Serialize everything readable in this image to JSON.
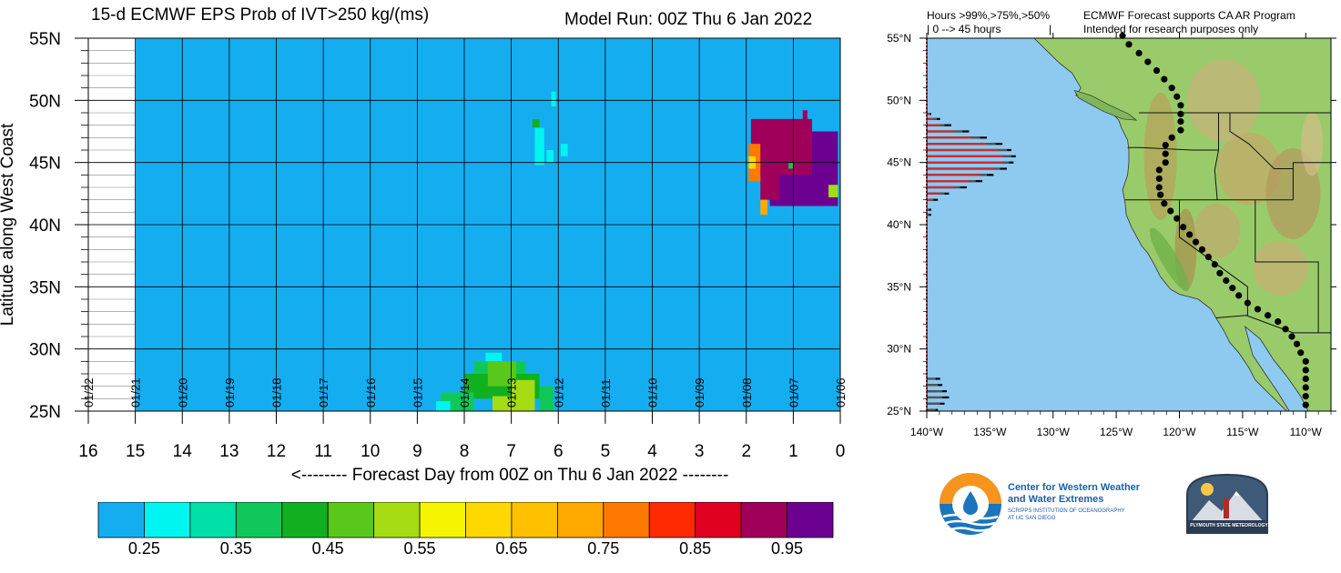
{
  "header": {
    "title": "15-d ECMWF EPS Prob of IVT>250 kg/(ms)",
    "model_run": "Model Run: 00Z Thu 6 Jan 2022"
  },
  "chart_data": [
    {
      "type": "heatmap",
      "title": "15-d ECMWF EPS Prob of IVT>250 kg/(ms)",
      "xlabel": "<-------- Forecast Day from 00Z on Thu 6 Jan 2022 --------",
      "ylabel": "Latitude along West Coast",
      "x_reversed": true,
      "xlim": [
        0,
        16
      ],
      "ylim": [
        25,
        55
      ],
      "x_ticks": [
        0,
        1,
        2,
        3,
        4,
        5,
        6,
        7,
        8,
        9,
        10,
        11,
        12,
        13,
        14,
        15,
        16
      ],
      "x_tick_labels": [
        "0",
        "1",
        "2",
        "3",
        "4",
        "5",
        "6",
        "7",
        "8",
        "9",
        "10",
        "11",
        "12",
        "13",
        "14",
        "15",
        "16"
      ],
      "y_ticks": [
        25,
        30,
        35,
        40,
        45,
        50,
        55
      ],
      "y_tick_labels": [
        "25N",
        "30N",
        "35N",
        "40N",
        "45N",
        "50N",
        "55N"
      ],
      "date_labels": [
        "01/06",
        "01/07",
        "01/08",
        "01/09",
        "01/10",
        "01/11",
        "01/12",
        "01/13",
        "01/14",
        "01/15",
        "01/16",
        "01/17",
        "01/18",
        "01/19",
        "01/20",
        "01/21",
        "01/22"
      ],
      "data_extent_days": 15,
      "background_prob": 0.25,
      "regions": [
        {
          "day": [
            0.05,
            1.5
          ],
          "lat": [
            41.5,
            47.5
          ],
          "prob": 1.0
        },
        {
          "day": [
            0.6,
            1.9
          ],
          "lat": [
            44.0,
            48.5
          ],
          "prob": 0.97
        },
        {
          "day": [
            1.3,
            1.7
          ],
          "lat": [
            42.0,
            44.5
          ],
          "prob": 0.97
        },
        {
          "day": [
            1.55,
            1.7
          ],
          "lat": [
            40.8,
            42.0
          ],
          "prob": 0.75
        },
        {
          "day": [
            0.05,
            0.25
          ],
          "lat": [
            42.2,
            43.2
          ],
          "prob": 0.6
        },
        {
          "day": [
            1.7,
            1.95
          ],
          "lat": [
            43.5,
            46.5
          ],
          "prob": 0.85
        },
        {
          "day": [
            1.8,
            1.95
          ],
          "lat": [
            44.5,
            45.5
          ],
          "prob": 0.65
        },
        {
          "day": [
            0.7,
            0.8
          ],
          "lat": [
            47.8,
            49.2
          ],
          "prob": 0.97
        },
        {
          "day": [
            1.0,
            1.1
          ],
          "lat": [
            44.5,
            45.0
          ],
          "prob": 0.4
        },
        {
          "day": [
            6.3,
            6.5
          ],
          "lat": [
            44.8,
            47.8
          ],
          "prob": 0.35
        },
        {
          "day": [
            6.4,
            6.55
          ],
          "lat": [
            47.8,
            48.5
          ],
          "prob": 0.45
        },
        {
          "day": [
            6.05,
            6.15
          ],
          "lat": [
            49.5,
            50.7
          ],
          "prob": 0.35
        },
        {
          "day": [
            5.8,
            5.95
          ],
          "lat": [
            45.5,
            46.5
          ],
          "prob": 0.35
        },
        {
          "day": [
            6.1,
            6.25
          ],
          "lat": [
            45.0,
            46.0
          ],
          "prob": 0.35
        },
        {
          "day": [
            7.2,
            7.55
          ],
          "lat": [
            29.0,
            29.7
          ],
          "prob": 0.35
        },
        {
          "day": [
            6.7,
            7.8
          ],
          "lat": [
            28.0,
            29.0
          ],
          "prob": 0.4
        },
        {
          "day": [
            6.4,
            8.0
          ],
          "lat": [
            26.0,
            28.0
          ],
          "prob": 0.45
        },
        {
          "day": [
            6.9,
            7.5
          ],
          "lat": [
            27.0,
            29.0
          ],
          "prob": 0.5
        },
        {
          "day": [
            6.5,
            7.0
          ],
          "lat": [
            25.0,
            27.5
          ],
          "prob": 0.55
        },
        {
          "day": [
            7.0,
            7.4
          ],
          "lat": [
            25.0,
            26.2
          ],
          "prob": 0.6
        },
        {
          "day": [
            7.8,
            8.5
          ],
          "lat": [
            25.0,
            26.5
          ],
          "prob": 0.42
        },
        {
          "day": [
            8.3,
            8.6
          ],
          "lat": [
            25.0,
            25.8
          ],
          "prob": 0.35
        },
        {
          "day": [
            6.1,
            6.4
          ],
          "lat": [
            25.0,
            27.0
          ],
          "prob": 0.4
        }
      ],
      "colorbar": {
        "colors": [
          "#14aef0",
          "#00f5f0",
          "#00e0a8",
          "#10c85a",
          "#10b020",
          "#5ac81a",
          "#a6dc14",
          "#f5f500",
          "#ffd800",
          "#ffc000",
          "#ffa800",
          "#ff7800",
          "#ff2a00",
          "#e00020",
          "#a0005a",
          "#6c0090"
        ],
        "tick_labels": [
          "0.25",
          "0.35",
          "0.45",
          "0.55",
          "0.65",
          "0.75",
          "0.85",
          "0.95"
        ]
      }
    },
    {
      "type": "bar",
      "title": "",
      "legend_text": [
        "Hours >99%,>75%,>50%",
        "| 0 --> 45 hours",
        "|"
      ],
      "notes": [
        "ECMWF Forecast supports CA AR Program",
        "Intended for research purposes only"
      ],
      "x_ticks": [
        -140,
        -135,
        -130,
        -125,
        -120,
        -115,
        -110
      ],
      "x_tick_labels": [
        "140°W",
        "135°W",
        "130°W",
        "125°W",
        "120°W",
        "115°W",
        "110°W"
      ],
      "y_ticks": [
        25,
        30,
        35,
        40,
        45,
        50,
        55
      ],
      "y_tick_labels": [
        "25°N",
        "30°N",
        "35°N",
        "40°N",
        "45°N",
        "50°N",
        "55°N"
      ],
      "lon_range": [
        -140,
        -108
      ],
      "lat_range": [
        25,
        55
      ],
      "bar_max_hours": 45,
      "series_colors": [
        "#000000",
        "#555555",
        "#d52a2a"
      ],
      "bars": [
        {
          "lat": 48.9,
          "h99": 1.0,
          "h75": 1.5,
          "h50": 2
        },
        {
          "lat": 48.5,
          "h99": 3,
          "h75": 4.5,
          "h50": 6
        },
        {
          "lat": 48.0,
          "h99": 6,
          "h75": 8,
          "h50": 11
        },
        {
          "lat": 47.5,
          "h99": 12,
          "h75": 16,
          "h50": 19
        },
        {
          "lat": 47.0,
          "h99": 20,
          "h75": 24,
          "h50": 27
        },
        {
          "lat": 46.5,
          "h99": 27,
          "h75": 31,
          "h50": 34
        },
        {
          "lat": 46.0,
          "h99": 32,
          "h75": 36,
          "h50": 38
        },
        {
          "lat": 45.5,
          "h99": 34,
          "h75": 38,
          "h50": 40
        },
        {
          "lat": 45.0,
          "h99": 34,
          "h75": 37,
          "h50": 39
        },
        {
          "lat": 44.5,
          "h99": 30,
          "h75": 33,
          "h50": 36
        },
        {
          "lat": 44.0,
          "h99": 24,
          "h75": 27,
          "h50": 30
        },
        {
          "lat": 43.5,
          "h99": 19,
          "h75": 22,
          "h50": 25
        },
        {
          "lat": 43.0,
          "h99": 12,
          "h75": 15,
          "h50": 18
        },
        {
          "lat": 42.5,
          "h99": 6,
          "h75": 8,
          "h50": 10
        },
        {
          "lat": 42.0,
          "h99": 2,
          "h75": 3,
          "h50": 5
        },
        {
          "lat": 41.2,
          "h99": 0.5,
          "h75": 1,
          "h50": 2
        },
        {
          "lat": 40.8,
          "h99": 0.5,
          "h75": 1,
          "h50": 2
        },
        {
          "lat": 27.6,
          "h99": 0,
          "h75": 4,
          "h50": 6
        },
        {
          "lat": 27.1,
          "h99": 0,
          "h75": 5,
          "h50": 7
        },
        {
          "lat": 26.6,
          "h99": 0,
          "h75": 7,
          "h50": 9
        },
        {
          "lat": 26.1,
          "h99": 0,
          "h75": 7,
          "h50": 10
        },
        {
          "lat": 25.6,
          "h99": 0,
          "h75": 6,
          "h50": 8
        },
        {
          "lat": 25.1,
          "h99": 0,
          "h75": 4,
          "h50": 5
        }
      ],
      "coast_points": [
        {
          "lon": -124.5,
          "lat": 55.2
        },
        {
          "lon": -124.0,
          "lat": 54.5
        },
        {
          "lon": -123.2,
          "lat": 53.8
        },
        {
          "lon": -122.5,
          "lat": 53.1
        },
        {
          "lon": -121.8,
          "lat": 52.4
        },
        {
          "lon": -121.2,
          "lat": 51.7
        },
        {
          "lon": -120.6,
          "lat": 51.0
        },
        {
          "lon": -120.2,
          "lat": 50.3
        },
        {
          "lon": -119.9,
          "lat": 49.6
        },
        {
          "lon": -119.9,
          "lat": 48.9
        },
        {
          "lon": -119.9,
          "lat": 48.3
        },
        {
          "lon": -119.9,
          "lat": 47.6
        },
        {
          "lon": -120.6,
          "lat": 47.0
        },
        {
          "lon": -121.1,
          "lat": 46.4
        },
        {
          "lon": -121.1,
          "lat": 45.7
        },
        {
          "lon": -121.1,
          "lat": 45.0
        },
        {
          "lon": -121.6,
          "lat": 44.4
        },
        {
          "lon": -121.6,
          "lat": 43.7
        },
        {
          "lon": -121.6,
          "lat": 43.0
        },
        {
          "lon": -121.5,
          "lat": 42.4
        },
        {
          "lon": -121.2,
          "lat": 41.7
        },
        {
          "lon": -120.7,
          "lat": 41.1
        },
        {
          "lon": -120.2,
          "lat": 40.5
        },
        {
          "lon": -119.7,
          "lat": 39.8
        },
        {
          "lon": -119.2,
          "lat": 39.2
        },
        {
          "lon": -118.7,
          "lat": 38.6
        },
        {
          "lon": -118.2,
          "lat": 38.0
        },
        {
          "lon": -117.7,
          "lat": 37.4
        },
        {
          "lon": -117.2,
          "lat": 36.8
        },
        {
          "lon": -116.8,
          "lat": 36.1
        },
        {
          "lon": -116.3,
          "lat": 35.5
        },
        {
          "lon": -115.8,
          "lat": 34.9
        },
        {
          "lon": -115.3,
          "lat": 34.3
        },
        {
          "lon": -114.6,
          "lat": 33.7
        },
        {
          "lon": -113.8,
          "lat": 33.2
        },
        {
          "lon": -113.0,
          "lat": 32.7
        },
        {
          "lon": -112.2,
          "lat": 32.2
        },
        {
          "lon": -111.6,
          "lat": 31.6
        },
        {
          "lon": -111.1,
          "lat": 31.0
        },
        {
          "lon": -110.7,
          "lat": 30.4
        },
        {
          "lon": -110.4,
          "lat": 29.7
        },
        {
          "lon": -110.0,
          "lat": 29.0
        },
        {
          "lon": -110.0,
          "lat": 28.3
        },
        {
          "lon": -110.0,
          "lat": 27.6
        },
        {
          "lon": -110.0,
          "lat": 26.9
        },
        {
          "lon": -110.0,
          "lat": 26.2
        },
        {
          "lon": -110.0,
          "lat": 25.5
        }
      ]
    }
  ],
  "logos": {
    "cw3e_line1": "Center for Western Weather",
    "cw3e_line2": "and Water Extremes",
    "cw3e_line3": "SCRIPPS INSTITUTION OF OCEANOGRAPHY",
    "cw3e_line4": "AT UC SAN DIEGO",
    "plymouth": "PLYMOUTH STATE METEOROLOGY"
  }
}
